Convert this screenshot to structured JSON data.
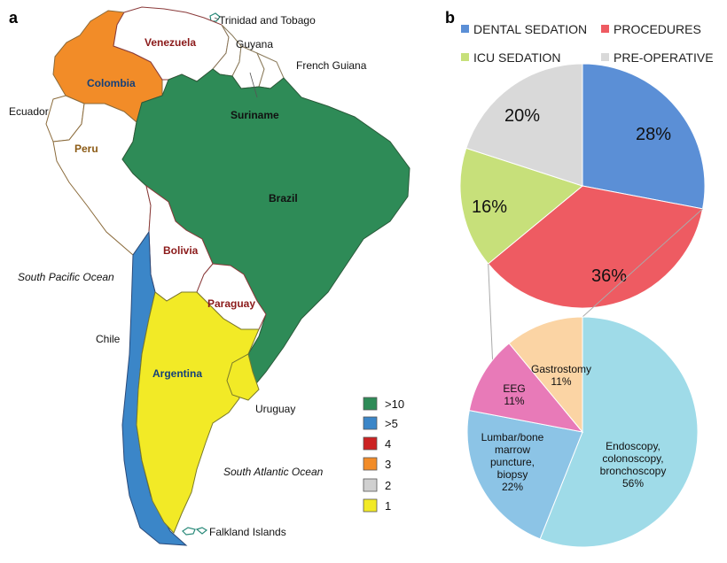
{
  "panel_a": {
    "letter": "a",
    "countries": {
      "venezuela": "Venezuela",
      "colombia": "Colombia",
      "peru": "Peru",
      "brazil": "Brazil",
      "bolivia": "Bolivia",
      "paraguay": "Paraguay",
      "argentina": "Argentina",
      "suriname": "Suriname"
    },
    "places": {
      "trinidad": "Trinidad and Tobago",
      "guyana": "Guyana",
      "french_guiana": "French Guiana",
      "ecuador": "Ecuador",
      "chile": "Chile",
      "uruguay": "Uruguay",
      "falkland": "Falkland Islands"
    },
    "oceans": {
      "pacific": "South Pacific Ocean",
      "atlantic": "South Atlantic Ocean"
    },
    "legend": [
      {
        "label": ">10",
        "color": "#2e8b57"
      },
      {
        "label": ">5",
        "color": "#3b86c8"
      },
      {
        "label": "4",
        "color": "#cc2222"
      },
      {
        "label": "3",
        "color": "#f28c28"
      },
      {
        "label": "2",
        "color": "#d0d0d0"
      },
      {
        "label": "1",
        "color": "#f2ea26"
      }
    ],
    "colors": {
      "green": "#2e8b57",
      "blue": "#3b86c8",
      "orange": "#f28c28",
      "yellow": "#f2ea26",
      "white": "#ffffff"
    }
  },
  "panel_b": {
    "letter": "b"
  },
  "chart_data": [
    {
      "type": "pie",
      "categories": [
        "DENTAL SEDATION",
        "PROCEDURES",
        "ICU SEDATION",
        "PRE-OPERATIVE"
      ],
      "values": [
        28,
        36,
        16,
        20
      ],
      "labels": [
        "28%",
        "36%",
        "16%",
        "20%"
      ],
      "colors": [
        "#5b8fd6",
        "#ee5b62",
        "#c7e07a",
        "#d9d9d9"
      ],
      "legend_placement": "top"
    },
    {
      "type": "pie",
      "categories": [
        "Endoscopy, colonoscopy, bronchoscopy",
        "Lumbar/bone marrow puncture, biopsy",
        "EEG",
        "Gastrostomy"
      ],
      "values": [
        56,
        22,
        11,
        11
      ],
      "labels": [
        [
          "Endoscopy,",
          "colonoscopy,",
          "bronchoscopy",
          "56%"
        ],
        [
          "Lumbar/bone",
          "marrow",
          "puncture,",
          "biopsy",
          "22%"
        ],
        [
          "EEG",
          "11%"
        ],
        [
          "Gastrostomy",
          "11%"
        ]
      ],
      "colors": [
        "#9fdbe8",
        "#8cc4e6",
        "#e87ab8",
        "#fbd4a4"
      ]
    }
  ]
}
